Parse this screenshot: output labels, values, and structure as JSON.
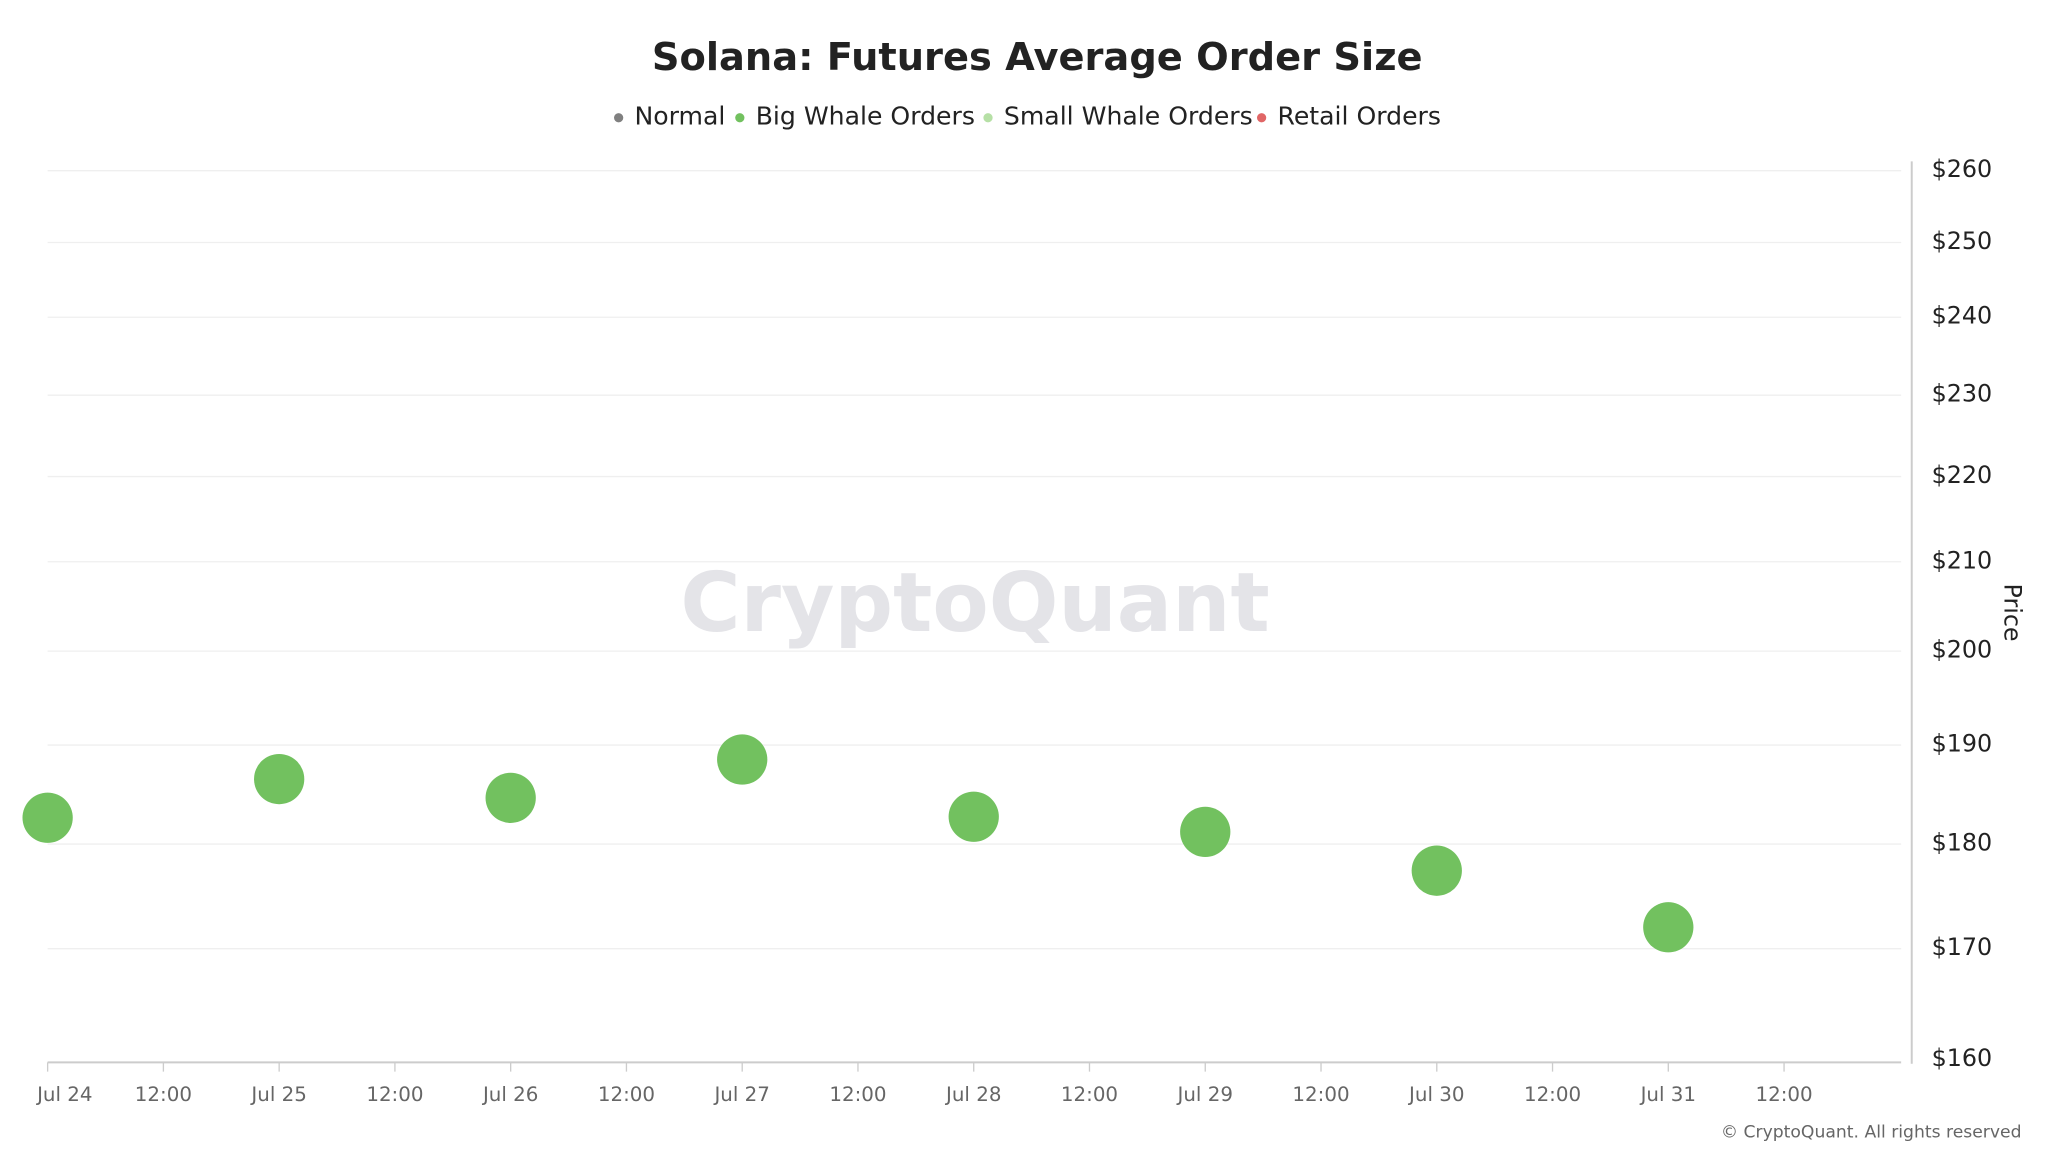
{
  "chart_data": {
    "type": "scatter",
    "title": "Solana: Futures Average Order Size",
    "y_label": "Price",
    "watermark": "CryptoQuant",
    "footer": "© CryptoQuant. All rights reserved",
    "x": [
      "Jul 24",
      "Jul 25",
      "Jul 26",
      "Jul 27",
      "Jul 28",
      "Jul 29",
      "Jul 30",
      "Jul 31"
    ],
    "xticks": [
      "Jul 24",
      "12:00",
      "Jul 25",
      "12:00",
      "Jul 26",
      "12:00",
      "Jul 27",
      "12:00",
      "Jul 28",
      "12:00",
      "Jul 29",
      "12:00",
      "Jul 30",
      "12:00",
      "Jul 31",
      "12:00"
    ],
    "series": [
      {
        "name": "Normal",
        "color": "#808080"
      },
      {
        "name": "Big Whale Orders",
        "color": "#72c15f",
        "values": [
          182.6,
          186.5,
          184.6,
          188.5,
          182.7,
          181.2,
          177.4,
          172.0
        ]
      },
      {
        "name": "Small Whale Orders",
        "color": "#b6e0a6"
      },
      {
        "name": "Retail Orders",
        "color": "#e06666"
      }
    ],
    "ylim": [
      160,
      260
    ],
    "ylog": true,
    "yticks": [
      {
        "value": 160,
        "label": "$160"
      },
      {
        "value": 170,
        "label": "$170"
      },
      {
        "value": 180,
        "label": "$180"
      },
      {
        "value": 190,
        "label": "$190"
      },
      {
        "value": 200,
        "label": "$200"
      },
      {
        "value": 210,
        "label": "$210"
      },
      {
        "value": 220,
        "label": "$220"
      },
      {
        "value": 230,
        "label": "$230"
      },
      {
        "value": 240,
        "label": "$240"
      },
      {
        "value": 250,
        "label": "$250"
      },
      {
        "value": 260,
        "label": "$260"
      }
    ],
    "grid": true
  }
}
